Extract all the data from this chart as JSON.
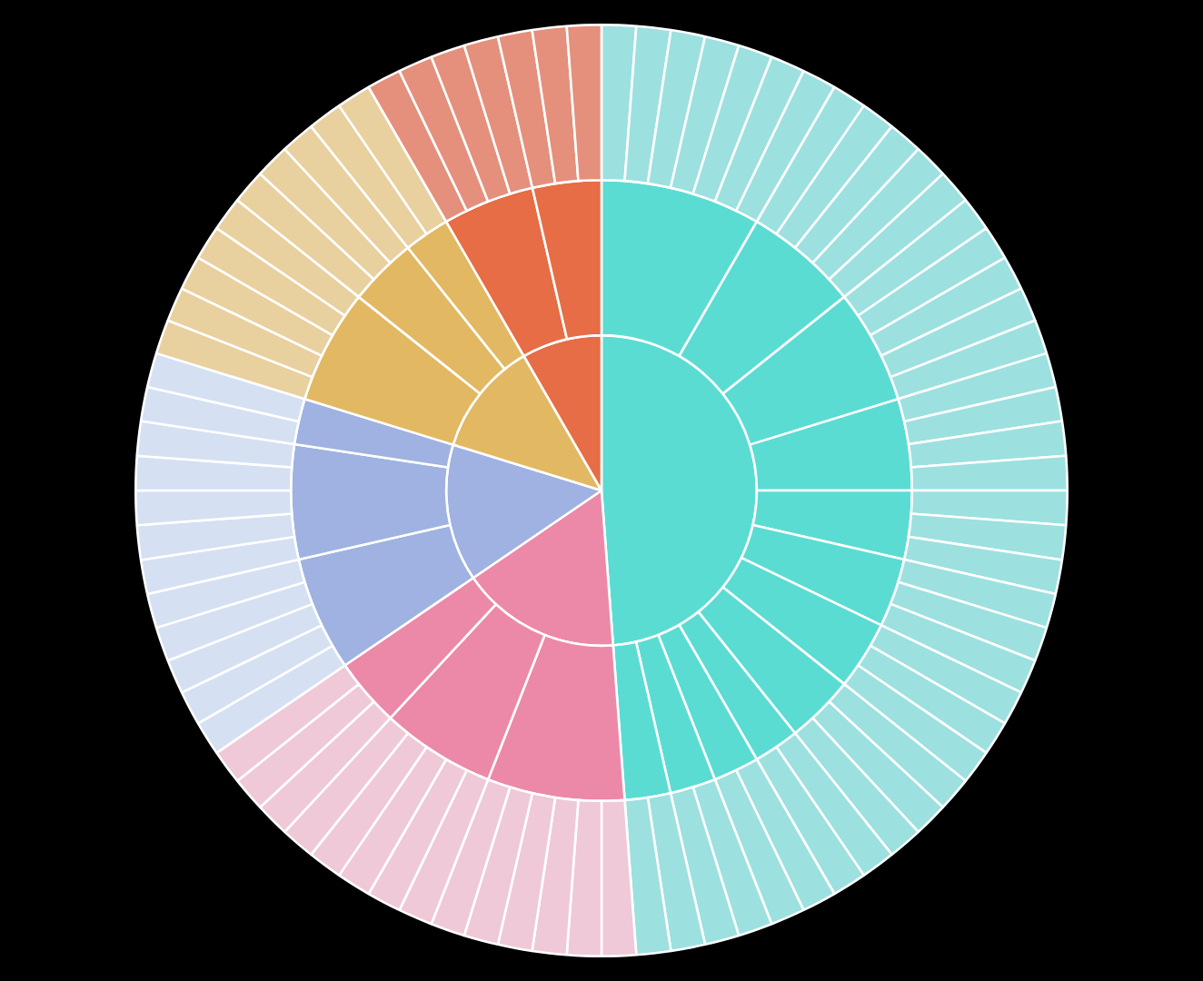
{
  "chart_data": {
    "type": "pie",
    "series": [
      {
        "values": [
          48.81,
          16.67,
          14.29,
          11.9,
          8.33
        ],
        "colors": [
          "#5bdcd3",
          "#ec89a8",
          "#9fb2e1",
          "#e2b862",
          "#e66d45"
        ]
      },
      {
        "values": [
          8.33,
          5.95,
          5.95,
          4.76,
          3.57,
          3.57,
          3.57,
          3.57,
          2.38,
          2.38,
          2.38,
          2.38,
          7.14,
          5.95,
          3.57,
          5.95,
          5.95,
          2.38,
          5.95,
          3.57,
          2.38,
          4.76,
          3.57
        ],
        "colors": [
          "#5bdcd3",
          "#5bdcd3",
          "#5bdcd3",
          "#5bdcd3",
          "#5bdcd3",
          "#5bdcd3",
          "#5bdcd3",
          "#5bdcd3",
          "#5bdcd3",
          "#5bdcd3",
          "#5bdcd3",
          "#5bdcd3",
          "#ec89a8",
          "#ec89a8",
          "#ec89a8",
          "#9fb2e1",
          "#9fb2e1",
          "#9fb2e1",
          "#e2b862",
          "#e2b862",
          "#e2b862",
          "#e66d45",
          "#e66d45"
        ]
      },
      {
        "values": [
          1.19,
          1.19,
          1.19,
          1.19,
          1.19,
          1.19,
          1.19,
          1.19,
          1.19,
          1.19,
          1.19,
          1.19,
          1.19,
          1.19,
          1.19,
          1.19,
          1.19,
          1.19,
          1.19,
          1.19,
          1.19,
          1.19,
          1.19,
          1.19,
          1.19,
          1.19,
          1.19,
          1.19,
          1.19,
          1.19,
          1.19,
          1.19,
          1.19,
          1.19,
          1.19,
          1.19,
          1.19,
          1.19,
          1.19,
          1.19,
          1.19,
          1.19,
          1.19,
          1.19,
          1.19,
          1.19,
          1.19,
          1.19,
          1.19,
          1.19,
          1.19,
          1.19,
          1.19,
          1.19,
          1.19,
          1.19,
          1.19,
          1.19,
          1.19,
          1.19,
          1.19,
          1.19,
          1.19,
          1.19,
          1.19,
          1.19,
          1.19,
          1.19,
          1.19,
          1.19,
          1.19,
          1.19,
          1.19,
          1.19,
          1.19,
          1.19,
          1.19,
          1.19,
          1.19,
          1.19,
          1.19,
          1.19,
          1.19,
          1.19
        ],
        "colors": [
          "#9de0e0",
          "#9de0e0",
          "#9de0e0",
          "#9de0e0",
          "#9de0e0",
          "#9de0e0",
          "#9de0e0",
          "#9de0e0",
          "#9de0e0",
          "#9de0e0",
          "#9de0e0",
          "#9de0e0",
          "#9de0e0",
          "#9de0e0",
          "#9de0e0",
          "#9de0e0",
          "#9de0e0",
          "#9de0e0",
          "#9de0e0",
          "#9de0e0",
          "#9de0e0",
          "#9de0e0",
          "#9de0e0",
          "#9de0e0",
          "#9de0e0",
          "#9de0e0",
          "#9de0e0",
          "#9de0e0",
          "#9de0e0",
          "#9de0e0",
          "#9de0e0",
          "#9de0e0",
          "#9de0e0",
          "#9de0e0",
          "#9de0e0",
          "#9de0e0",
          "#9de0e0",
          "#9de0e0",
          "#9de0e0",
          "#9de0e0",
          "#9de0e0",
          "#efc9d8",
          "#efc9d8",
          "#efc9d8",
          "#efc9d8",
          "#efc9d8",
          "#efc9d8",
          "#efc9d8",
          "#efc9d8",
          "#efc9d8",
          "#efc9d8",
          "#efc9d8",
          "#efc9d8",
          "#efc9d8",
          "#efc9d8",
          "#d5e0f3",
          "#d5e0f3",
          "#d5e0f3",
          "#d5e0f3",
          "#d5e0f3",
          "#d5e0f3",
          "#d5e0f3",
          "#d5e0f3",
          "#d5e0f3",
          "#d5e0f3",
          "#d5e0f3",
          "#d5e0f3",
          "#e8d09f",
          "#e8d09f",
          "#e8d09f",
          "#e8d09f",
          "#e8d09f",
          "#e8d09f",
          "#e8d09f",
          "#e8d09f",
          "#e8d09f",
          "#e8d09f",
          "#e4907c",
          "#e4907c",
          "#e4907c",
          "#e4907c",
          "#e4907c",
          "#e4907c",
          "#e4907c"
        ]
      }
    ]
  }
}
